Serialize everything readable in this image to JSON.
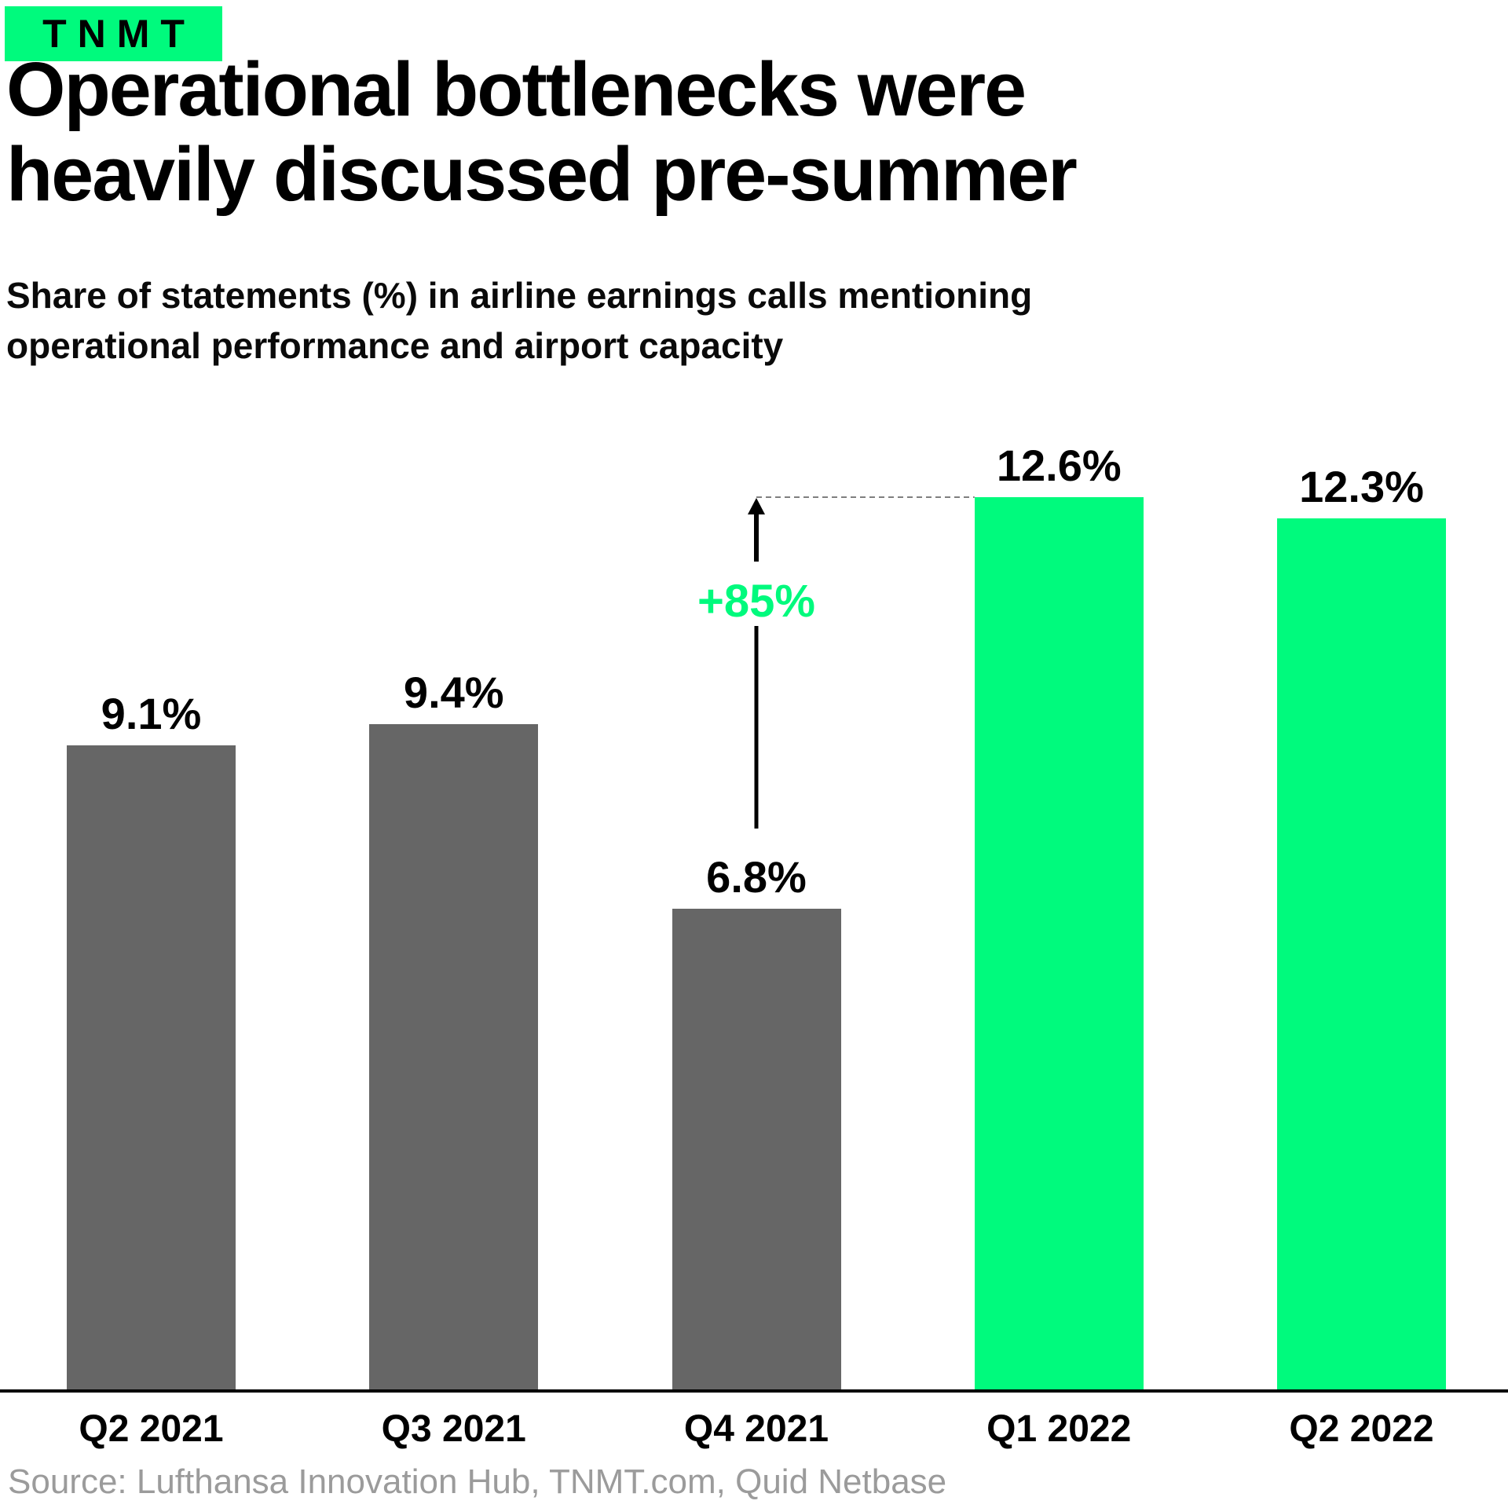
{
  "brand": {
    "logo_text": "TNMT",
    "green": "#00FA7D",
    "bar_gray": "#666666"
  },
  "header": {
    "title_lines": [
      "Operational bottlenecks were",
      "heavily discussed pre-summer"
    ],
    "subtitle_lines": [
      "Share of statements (%) in airline earnings calls mentioning",
      "operational performance and airport capacity"
    ]
  },
  "chart_data": {
    "type": "bar",
    "title": "Operational bottlenecks were heavily discussed pre-summer",
    "subtitle": "Share of statements (%) in airline earnings calls mentioning operational performance and airport capacity",
    "categories": [
      "Q2 2021",
      "Q3 2021",
      "Q4 2021",
      "Q1 2022",
      "Q2 2022"
    ],
    "values": [
      9.1,
      9.4,
      6.8,
      12.6,
      12.3
    ],
    "value_labels": [
      "9.1%",
      "9.4%",
      "6.8%",
      "12.6%",
      "12.3%"
    ],
    "bar_colors": [
      "#666666",
      "#666666",
      "#666666",
      "#00FA7D",
      "#00FA7D"
    ],
    "xlabel": "",
    "ylabel": "",
    "ylim": [
      0,
      13.5
    ],
    "grid": false,
    "legend": "none",
    "annotation": {
      "label": "+85%",
      "from_category": "Q4 2021",
      "to_category": "Q1 2022",
      "text_color": "#00FA7D",
      "arrow_color": "#000000",
      "dash_color": "#7f7f7f"
    }
  },
  "footer": {
    "source": "Source: Lufthansa Innovation Hub, TNMT.com, Quid Netbase"
  }
}
